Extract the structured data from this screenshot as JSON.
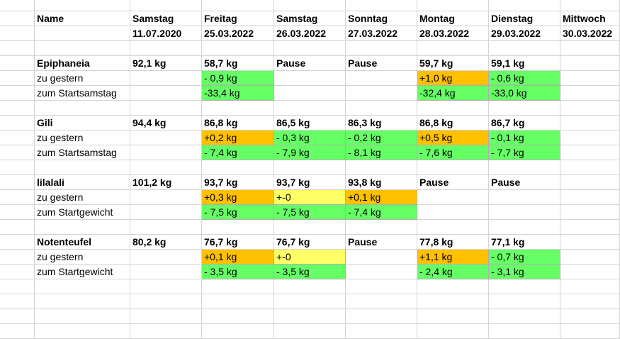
{
  "colors": {
    "green": "#66ff66",
    "orange": "#ffc000",
    "yellow": "#ffff66",
    "grid": "#d4d4d4"
  },
  "rows": [
    {
      "cells": [
        {
          "v": "Name",
          "b": true
        },
        {
          "v": "Samstag",
          "b": true
        },
        {
          "v": "Freitag",
          "b": true
        },
        {
          "v": "Samstag",
          "b": true
        },
        {
          "v": "Sonntag",
          "b": true
        },
        {
          "v": "Montag",
          "b": true
        },
        {
          "v": "Dienstag",
          "b": true
        },
        {
          "v": "Mittwoch",
          "b": true
        }
      ]
    },
    {
      "cells": [
        {
          "v": ""
        },
        {
          "v": "11.07.2020",
          "b": true
        },
        {
          "v": "25.03.2022",
          "b": true
        },
        {
          "v": "26.03.2022",
          "b": true
        },
        {
          "v": "27.03.2022",
          "b": true
        },
        {
          "v": "28.03.2022",
          "b": true
        },
        {
          "v": "29.03.2022",
          "b": true
        },
        {
          "v": "30.03.2022",
          "b": true
        }
      ]
    },
    {
      "cells": []
    },
    {
      "cells": [
        {
          "v": "Epiphaneia",
          "b": true
        },
        {
          "v": "92,1 kg",
          "b": true
        },
        {
          "v": "58,7 kg",
          "b": true
        },
        {
          "v": "Pause",
          "b": true
        },
        {
          "v": "Pause",
          "b": true
        },
        {
          "v": "59,7 kg",
          "b": true
        },
        {
          "v": "59,1 kg",
          "b": true
        },
        {
          "v": ""
        }
      ]
    },
    {
      "cells": [
        {
          "v": "zu gestern"
        },
        {
          "v": ""
        },
        {
          "v": "- 0,9 kg",
          "c": "g"
        },
        {
          "v": ""
        },
        {
          "v": ""
        },
        {
          "v": "+1,0 kg",
          "c": "o"
        },
        {
          "v": "- 0,6 kg",
          "c": "g"
        },
        {
          "v": ""
        }
      ]
    },
    {
      "cells": [
        {
          "v": "zum Startsamstag"
        },
        {
          "v": ""
        },
        {
          "v": "-33,4 kg",
          "c": "g"
        },
        {
          "v": ""
        },
        {
          "v": ""
        },
        {
          "v": "-32,4 kg",
          "c": "g"
        },
        {
          "v": "-33,0 kg",
          "c": "g"
        },
        {
          "v": ""
        }
      ]
    },
    {
      "cells": []
    },
    {
      "cells": [
        {
          "v": "Gili",
          "b": true
        },
        {
          "v": "94,4 kg",
          "b": true
        },
        {
          "v": "86,8 kg",
          "b": true
        },
        {
          "v": "86,5 kg",
          "b": true
        },
        {
          "v": "86,3 kg",
          "b": true
        },
        {
          "v": "86,8 kg",
          "b": true
        },
        {
          "v": "86,7 kg",
          "b": true
        },
        {
          "v": ""
        }
      ]
    },
    {
      "cells": [
        {
          "v": "zu gestern"
        },
        {
          "v": ""
        },
        {
          "v": "+0,2 kg",
          "c": "o"
        },
        {
          "v": "- 0,3 kg",
          "c": "g"
        },
        {
          "v": "- 0,2 kg",
          "c": "g"
        },
        {
          "v": "+0,5 kg",
          "c": "o"
        },
        {
          "v": "- 0,1 kg",
          "c": "g"
        },
        {
          "v": ""
        }
      ]
    },
    {
      "cells": [
        {
          "v": "zum Startsamstag"
        },
        {
          "v": ""
        },
        {
          "v": "- 7,4 kg",
          "c": "g"
        },
        {
          "v": "- 7,9 kg",
          "c": "g"
        },
        {
          "v": "- 8,1 kg",
          "c": "g"
        },
        {
          "v": "- 7,6 kg",
          "c": "g"
        },
        {
          "v": "- 7,7 kg",
          "c": "g"
        },
        {
          "v": ""
        }
      ]
    },
    {
      "cells": []
    },
    {
      "cells": [
        {
          "v": "lilalali",
          "b": true
        },
        {
          "v": "101,2 kg",
          "b": true
        },
        {
          "v": "93,7 kg",
          "b": true
        },
        {
          "v": "93,7 kg",
          "b": true
        },
        {
          "v": "93,8 kg",
          "b": true
        },
        {
          "v": "Pause",
          "b": true
        },
        {
          "v": "Pause",
          "b": true
        },
        {
          "v": ""
        }
      ]
    },
    {
      "cells": [
        {
          "v": "zu gestern"
        },
        {
          "v": ""
        },
        {
          "v": "+0,3 kg",
          "c": "o"
        },
        {
          "v": "+-0",
          "c": "y"
        },
        {
          "v": "+0,1 kg",
          "c": "o"
        },
        {
          "v": ""
        },
        {
          "v": ""
        },
        {
          "v": ""
        }
      ]
    },
    {
      "cells": [
        {
          "v": "zum Startgewicht"
        },
        {
          "v": ""
        },
        {
          "v": "- 7,5 kg",
          "c": "g"
        },
        {
          "v": "- 7,5 kg",
          "c": "g"
        },
        {
          "v": "- 7,4 kg",
          "c": "g"
        },
        {
          "v": ""
        },
        {
          "v": ""
        },
        {
          "v": ""
        }
      ]
    },
    {
      "cells": []
    },
    {
      "cells": [
        {
          "v": "Notenteufel",
          "b": true
        },
        {
          "v": "80,2 kg",
          "b": true
        },
        {
          "v": "76,7 kg",
          "b": true
        },
        {
          "v": "76,7 kg",
          "b": true
        },
        {
          "v": "Pause",
          "b": true
        },
        {
          "v": "77,8 kg",
          "b": true
        },
        {
          "v": "77,1 kg",
          "b": true
        },
        {
          "v": ""
        }
      ]
    },
    {
      "cells": [
        {
          "v": "zu gestern"
        },
        {
          "v": ""
        },
        {
          "v": "+0,1 kg",
          "c": "o"
        },
        {
          "v": "+-0",
          "c": "y"
        },
        {
          "v": ""
        },
        {
          "v": "+1,1 kg",
          "c": "o"
        },
        {
          "v": "- 0,7 kg",
          "c": "g"
        },
        {
          "v": ""
        }
      ]
    },
    {
      "cells": [
        {
          "v": "zum Startgewicht"
        },
        {
          "v": ""
        },
        {
          "v": "- 3,5 kg",
          "c": "g"
        },
        {
          "v": "- 3,5 kg",
          "c": "g"
        },
        {
          "v": ""
        },
        {
          "v": "- 2,4 kg",
          "c": "g"
        },
        {
          "v": "- 3,1 kg",
          "c": "g"
        },
        {
          "v": ""
        }
      ]
    },
    {
      "cells": []
    },
    {
      "cells": []
    },
    {
      "cells": []
    },
    {
      "cells": []
    }
  ]
}
